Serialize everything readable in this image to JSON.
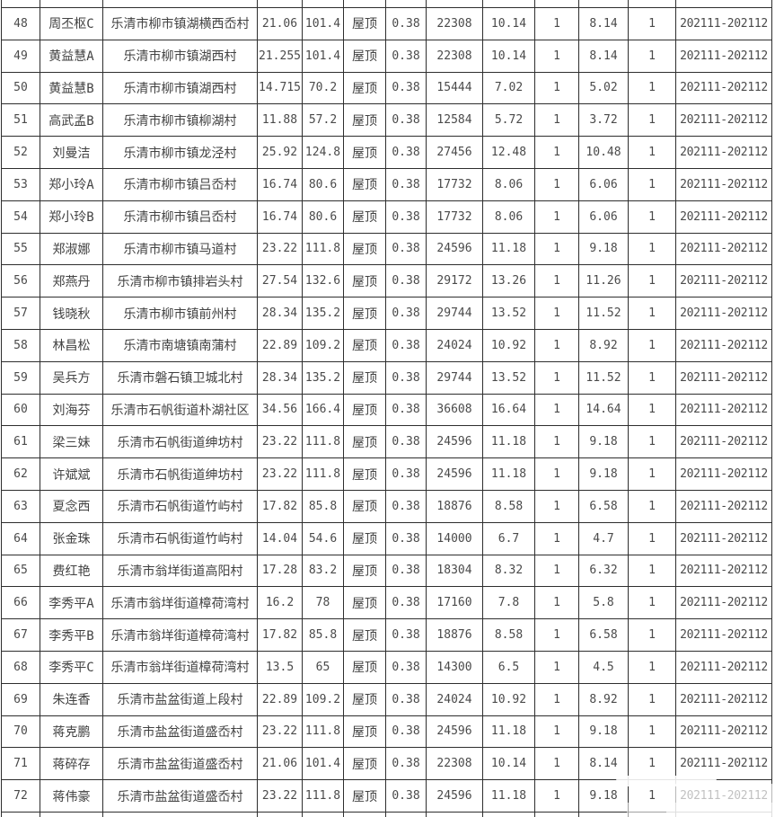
{
  "colors": {
    "background": "#ffffff",
    "grid_border": "#2e2e2e",
    "text": "#4a4a4a",
    "watermark": "#ffffff"
  },
  "table": {
    "rows": [
      [
        "48",
        "周丕枢C",
        "乐清市柳市镇湖横西岙村",
        "21.06",
        "101.4",
        "屋顶",
        "0.38",
        "22308",
        "10.14",
        "1",
        "8.14",
        "1",
        "202111-202112"
      ],
      [
        "49",
        "黄益慧A",
        "乐清市柳市镇湖西村",
        "21.255",
        "101.4",
        "屋顶",
        "0.38",
        "22308",
        "10.14",
        "1",
        "8.14",
        "1",
        "202111-202112"
      ],
      [
        "50",
        "黄益慧B",
        "乐清市柳市镇湖西村",
        "14.715",
        "70.2",
        "屋顶",
        "0.38",
        "15444",
        "7.02",
        "1",
        "5.02",
        "1",
        "202111-202112"
      ],
      [
        "51",
        "高武孟B",
        "乐清市柳市镇柳湖村",
        "11.88",
        "57.2",
        "屋顶",
        "0.38",
        "12584",
        "5.72",
        "1",
        "3.72",
        "1",
        "202111-202112"
      ],
      [
        "52",
        "刘曼洁",
        "乐清市柳市镇龙泾村",
        "25.92",
        "124.8",
        "屋顶",
        "0.38",
        "27456",
        "12.48",
        "1",
        "10.48",
        "1",
        "202111-202112"
      ],
      [
        "53",
        "郑小玲A",
        "乐清市柳市镇吕岙村",
        "16.74",
        "80.6",
        "屋顶",
        "0.38",
        "17732",
        "8.06",
        "1",
        "6.06",
        "1",
        "202111-202112"
      ],
      [
        "54",
        "郑小玲B",
        "乐清市柳市镇吕岙村",
        "16.74",
        "80.6",
        "屋顶",
        "0.38",
        "17732",
        "8.06",
        "1",
        "6.06",
        "1",
        "202111-202112"
      ],
      [
        "55",
        "郑淑娜",
        "乐清市柳市镇马道村",
        "23.22",
        "111.8",
        "屋顶",
        "0.38",
        "24596",
        "11.18",
        "1",
        "9.18",
        "1",
        "202111-202112"
      ],
      [
        "56",
        "郑燕丹",
        "乐清市柳市镇排岩头村",
        "27.54",
        "132.6",
        "屋顶",
        "0.38",
        "29172",
        "13.26",
        "1",
        "11.26",
        "1",
        "202111-202112"
      ],
      [
        "57",
        "钱晓秋",
        "乐清市柳市镇前州村",
        "28.34",
        "135.2",
        "屋顶",
        "0.38",
        "29744",
        "13.52",
        "1",
        "11.52",
        "1",
        "202111-202112"
      ],
      [
        "58",
        "林昌松",
        "乐清市南塘镇南蒲村",
        "22.89",
        "109.2",
        "屋顶",
        "0.38",
        "24024",
        "10.92",
        "1",
        "8.92",
        "1",
        "202111-202112"
      ],
      [
        "59",
        "吴兵方",
        "乐清市磐石镇卫城北村",
        "28.34",
        "135.2",
        "屋顶",
        "0.38",
        "29744",
        "13.52",
        "1",
        "11.52",
        "1",
        "202111-202112"
      ],
      [
        "60",
        "刘海芬",
        "乐清市石帆街道朴湖社区",
        "34.56",
        "166.4",
        "屋顶",
        "0.38",
        "36608",
        "16.64",
        "1",
        "14.64",
        "1",
        "202111-202112"
      ],
      [
        "61",
        "梁三妹",
        "乐清市石帆街道绅坊村",
        "23.22",
        "111.8",
        "屋顶",
        "0.38",
        "24596",
        "11.18",
        "1",
        "9.18",
        "1",
        "202111-202112"
      ],
      [
        "62",
        "许斌斌",
        "乐清市石帆街道绅坊村",
        "23.22",
        "111.8",
        "屋顶",
        "0.38",
        "24596",
        "11.18",
        "1",
        "9.18",
        "1",
        "202111-202112"
      ],
      [
        "63",
        "夏念西",
        "乐清市石帆街道竹屿村",
        "17.82",
        "85.8",
        "屋顶",
        "0.38",
        "18876",
        "8.58",
        "1",
        "6.58",
        "1",
        "202111-202112"
      ],
      [
        "64",
        "张金珠",
        "乐清市石帆街道竹屿村",
        "14.04",
        "54.6",
        "屋顶",
        "0.38",
        "14000",
        "6.7",
        "1",
        "4.7",
        "1",
        "202111-202112"
      ],
      [
        "65",
        "费红艳",
        "乐清市翁垟街道高阳村",
        "17.28",
        "83.2",
        "屋顶",
        "0.38",
        "18304",
        "8.32",
        "1",
        "6.32",
        "1",
        "202111-202112"
      ],
      [
        "66",
        "李秀平A",
        "乐清市翁垟街道樟荷湾村",
        "16.2",
        "78",
        "屋顶",
        "0.38",
        "17160",
        "7.8",
        "1",
        "5.8",
        "1",
        "202111-202112"
      ],
      [
        "67",
        "李秀平B",
        "乐清市翁垟街道樟荷湾村",
        "17.82",
        "85.8",
        "屋顶",
        "0.38",
        "18876",
        "8.58",
        "1",
        "6.58",
        "1",
        "202111-202112"
      ],
      [
        "68",
        "李秀平C",
        "乐清市翁垟街道樟荷湾村",
        "13.5",
        "65",
        "屋顶",
        "0.38",
        "14300",
        "6.5",
        "1",
        "4.5",
        "1",
        "202111-202112"
      ],
      [
        "69",
        "朱连香",
        "乐清市盐盆街道上段村",
        "22.89",
        "109.2",
        "屋顶",
        "0.38",
        "24024",
        "10.92",
        "1",
        "8.92",
        "1",
        "202111-202112"
      ],
      [
        "70",
        "蒋克鹏",
        "乐清市盐盆街道盛岙村",
        "23.22",
        "111.8",
        "屋顶",
        "0.38",
        "24596",
        "11.18",
        "1",
        "9.18",
        "1",
        "202111-202112"
      ],
      [
        "71",
        "蒋碎存",
        "乐清市盐盆街道盛岙村",
        "21.06",
        "101.4",
        "屋顶",
        "0.38",
        "22308",
        "10.14",
        "1",
        "8.14",
        "1",
        "202111-202112"
      ],
      [
        "72",
        "蒋伟豪",
        "乐清市盐盆街道盛岙村",
        "23.22",
        "111.8",
        "屋顶",
        "0.38",
        "24596",
        "11.18",
        "1",
        "9.18",
        "1",
        "202111-202112"
      ]
    ]
  }
}
